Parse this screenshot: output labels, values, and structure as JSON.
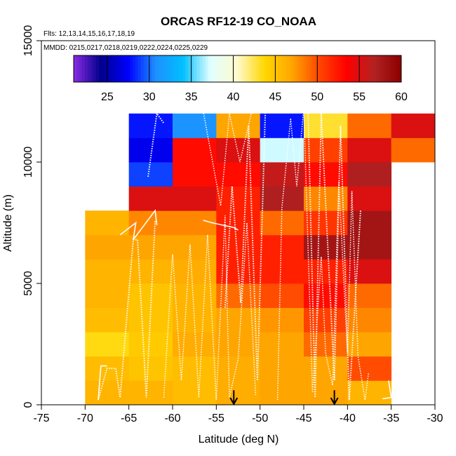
{
  "chart_data": {
    "type": "heatmap",
    "title": "ORCAS RF12-19 CO_NOAA",
    "flights_label": "Flts: 12,13,14,15,16,17,18,19",
    "dates_label": "MMDD: 0215,0217,0218,0219,0222,0224,0225,0229",
    "xlabel": "Latitude (deg N)",
    "ylabel": "Altitude (m)",
    "xlim": [
      -75,
      -30
    ],
    "ylim": [
      0,
      15000
    ],
    "x_ticks": [
      "-75",
      "-70",
      "-65",
      "-60",
      "-55",
      "-50",
      "-45",
      "-40",
      "-35",
      "-30"
    ],
    "y_ticks": [
      "0",
      "5000",
      "10000",
      "15000"
    ],
    "colorbar": {
      "range": [
        21,
        60
      ],
      "ticks": [
        "25",
        "30",
        "35",
        "40",
        "45",
        "50",
        "55",
        "60"
      ],
      "colors": [
        "#8a2be2",
        "#00008b",
        "#0000ff",
        "#1e90ff",
        "#00bfff",
        "#e0ffff",
        "#fffacd",
        "#ffd700",
        "#ffa500",
        "#ff4500",
        "#ff0000",
        "#b22222",
        "#8b0000"
      ]
    },
    "bin_width_deg": 5,
    "bin_height_m": 1000,
    "columns": [
      {
        "lat": -70,
        "bins": [
          [
            0,
            46
          ],
          [
            1000,
            45.5
          ],
          [
            2000,
            43.5
          ],
          [
            3000,
            45.5
          ],
          [
            4000,
            46
          ],
          [
            5000,
            46
          ],
          [
            6000,
            47
          ],
          [
            7000,
            46
          ]
        ]
      },
      {
        "lat": -65,
        "bins": [
          [
            0,
            46
          ],
          [
            1000,
            45
          ],
          [
            2000,
            44.5
          ],
          [
            3000,
            45
          ],
          [
            4000,
            45
          ],
          [
            5000,
            46
          ],
          [
            6000,
            47
          ],
          [
            7000,
            48
          ],
          [
            8000,
            55
          ],
          [
            9000,
            29
          ],
          [
            10000,
            27
          ],
          [
            11000,
            28
          ]
        ]
      },
      {
        "lat": -60,
        "bins": [
          [
            0,
            45.5
          ],
          [
            1000,
            45.5
          ],
          [
            2000,
            46.5
          ],
          [
            3000,
            46
          ],
          [
            4000,
            46
          ],
          [
            5000,
            46.5
          ],
          [
            6000,
            47
          ],
          [
            7000,
            48
          ],
          [
            8000,
            55
          ],
          [
            9000,
            53
          ],
          [
            10000,
            53
          ],
          [
            11000,
            31
          ]
        ]
      },
      {
        "lat": -55,
        "bins": [
          [
            0,
            46.5
          ],
          [
            1000,
            46.5
          ],
          [
            2000,
            47
          ],
          [
            3000,
            47
          ],
          [
            4000,
            49
          ],
          [
            5000,
            52
          ],
          [
            6000,
            52
          ],
          [
            7000,
            52
          ],
          [
            8000,
            52
          ],
          [
            9000,
            53
          ],
          [
            10000,
            55
          ],
          [
            11000,
            47
          ]
        ]
      },
      {
        "lat": -50,
        "bins": [
          [
            0,
            47
          ],
          [
            1000,
            47
          ],
          [
            2000,
            47
          ],
          [
            3000,
            47.5
          ],
          [
            4000,
            50
          ],
          [
            5000,
            52
          ],
          [
            6000,
            52
          ],
          [
            7000,
            49
          ],
          [
            8000,
            57
          ],
          [
            9000,
            56
          ],
          [
            10000,
            37
          ],
          [
            11000,
            28
          ]
        ]
      },
      {
        "lat": -45,
        "bins": [
          [
            0,
            47
          ],
          [
            1000,
            47
          ],
          [
            2000,
            49
          ],
          [
            3000,
            50.5
          ],
          [
            4000,
            53
          ],
          [
            5000,
            52
          ],
          [
            6000,
            58
          ],
          [
            7000,
            51
          ],
          [
            8000,
            48
          ],
          [
            9000,
            53
          ],
          [
            10000,
            50.5
          ],
          [
            11000,
            43
          ]
        ]
      },
      {
        "lat": -40,
        "bins": [
          [
            0,
            46
          ],
          [
            1000,
            50
          ],
          [
            2000,
            47
          ],
          [
            3000,
            48
          ],
          [
            4000,
            49
          ],
          [
            5000,
            55
          ],
          [
            6000,
            58
          ],
          [
            7000,
            58
          ],
          [
            8000,
            55
          ],
          [
            9000,
            57
          ],
          [
            10000,
            55
          ],
          [
            11000,
            49
          ]
        ]
      },
      {
        "lat": -35,
        "bins": [
          [
            10000,
            49
          ],
          [
            11000,
            55
          ]
        ]
      }
    ],
    "arrows_lat": [
      -53,
      -41.5
    ]
  }
}
